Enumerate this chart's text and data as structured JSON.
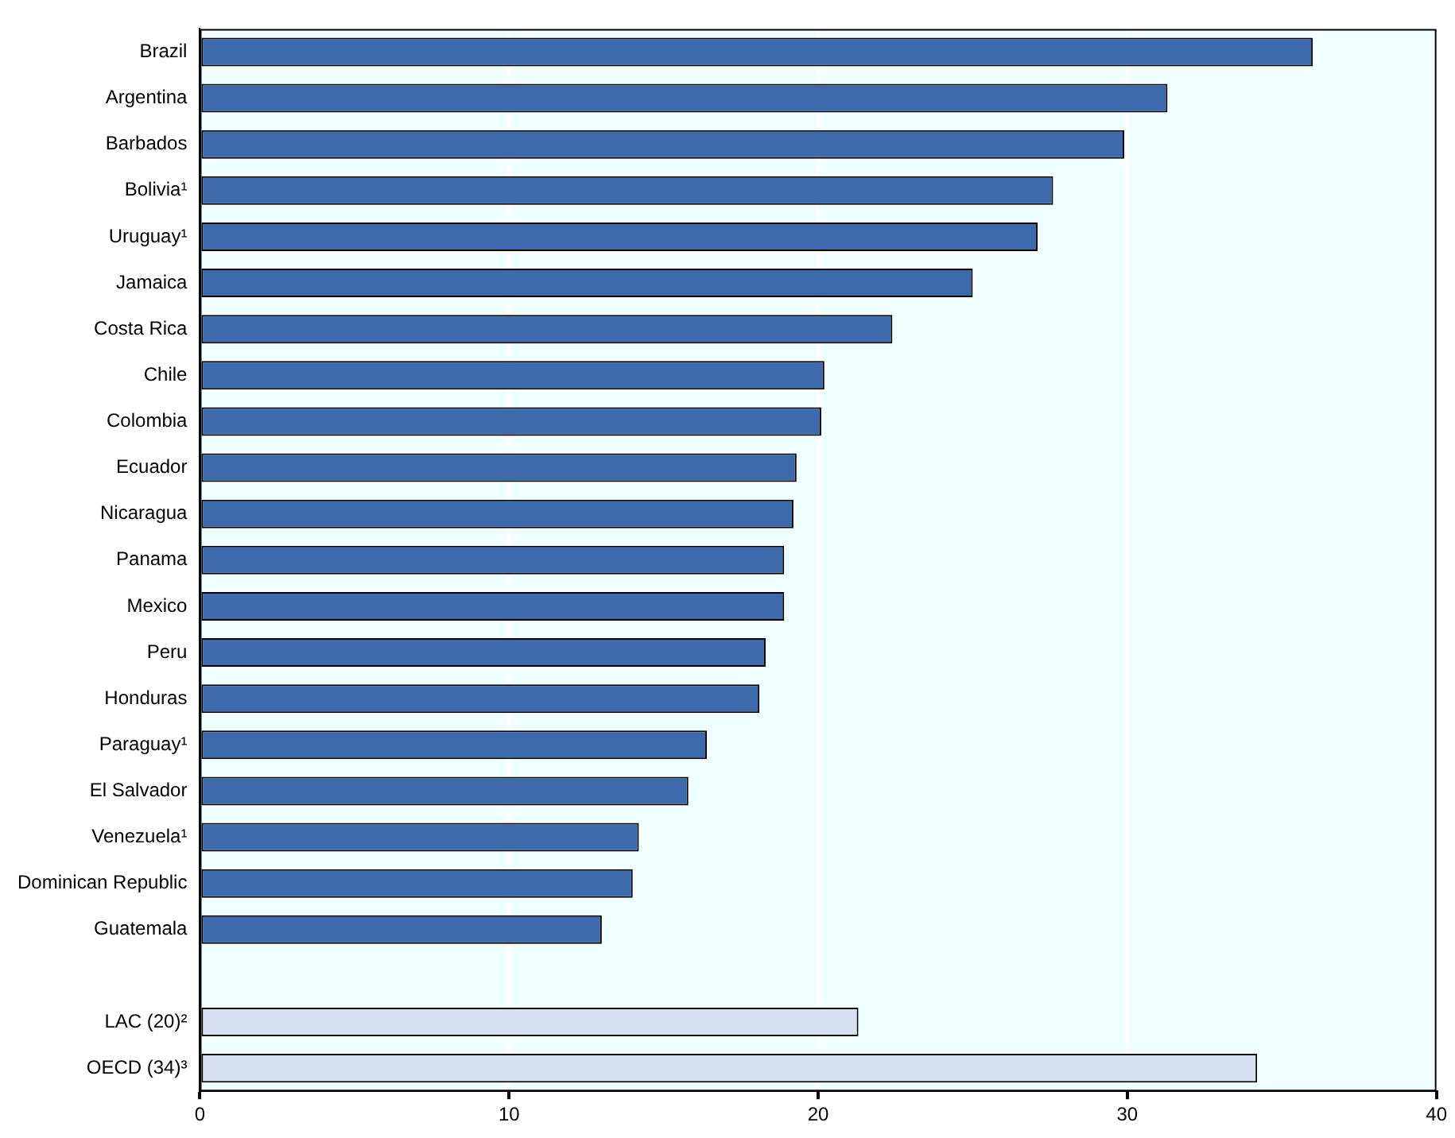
{
  "chart_data": {
    "type": "bar",
    "orientation": "horizontal",
    "categories": [
      "Brazil",
      "Argentina",
      "Barbados",
      "Bolivia¹",
      "Uruguay¹",
      "Jamaica",
      "Costa Rica",
      "Chile",
      "Colombia",
      "Ecuador",
      "Nicaragua",
      "Panama",
      "Mexico",
      "Peru",
      "Honduras",
      "Paraguay¹",
      "El Salvador",
      "Venezuela¹",
      "Dominican Republic",
      "Guatemala",
      null,
      "LAC (20)²",
      "OECD (34)³"
    ],
    "values": [
      36.0,
      31.3,
      29.9,
      27.6,
      27.1,
      25.0,
      22.4,
      20.2,
      20.1,
      19.3,
      19.2,
      18.9,
      18.9,
      18.3,
      18.1,
      16.4,
      15.8,
      14.2,
      14.0,
      13.0,
      null,
      21.3,
      34.2
    ],
    "colors": [
      "#3d6aad",
      "#3d6aad",
      "#3d6aad",
      "#3d6aad",
      "#3d6aad",
      "#3d6aad",
      "#3d6aad",
      "#3d6aad",
      "#3d6aad",
      "#3d6aad",
      "#3d6aad",
      "#3d6aad",
      "#3d6aad",
      "#3d6aad",
      "#3d6aad",
      "#3d6aad",
      "#3d6aad",
      "#3d6aad",
      "#3d6aad",
      "#3d6aad",
      "#3d6aad",
      "#d6e0f0",
      "#d6e0f0"
    ],
    "xlim": [
      0,
      40
    ],
    "xticks": [
      0,
      10,
      20,
      30,
      40
    ],
    "grid": "x"
  }
}
